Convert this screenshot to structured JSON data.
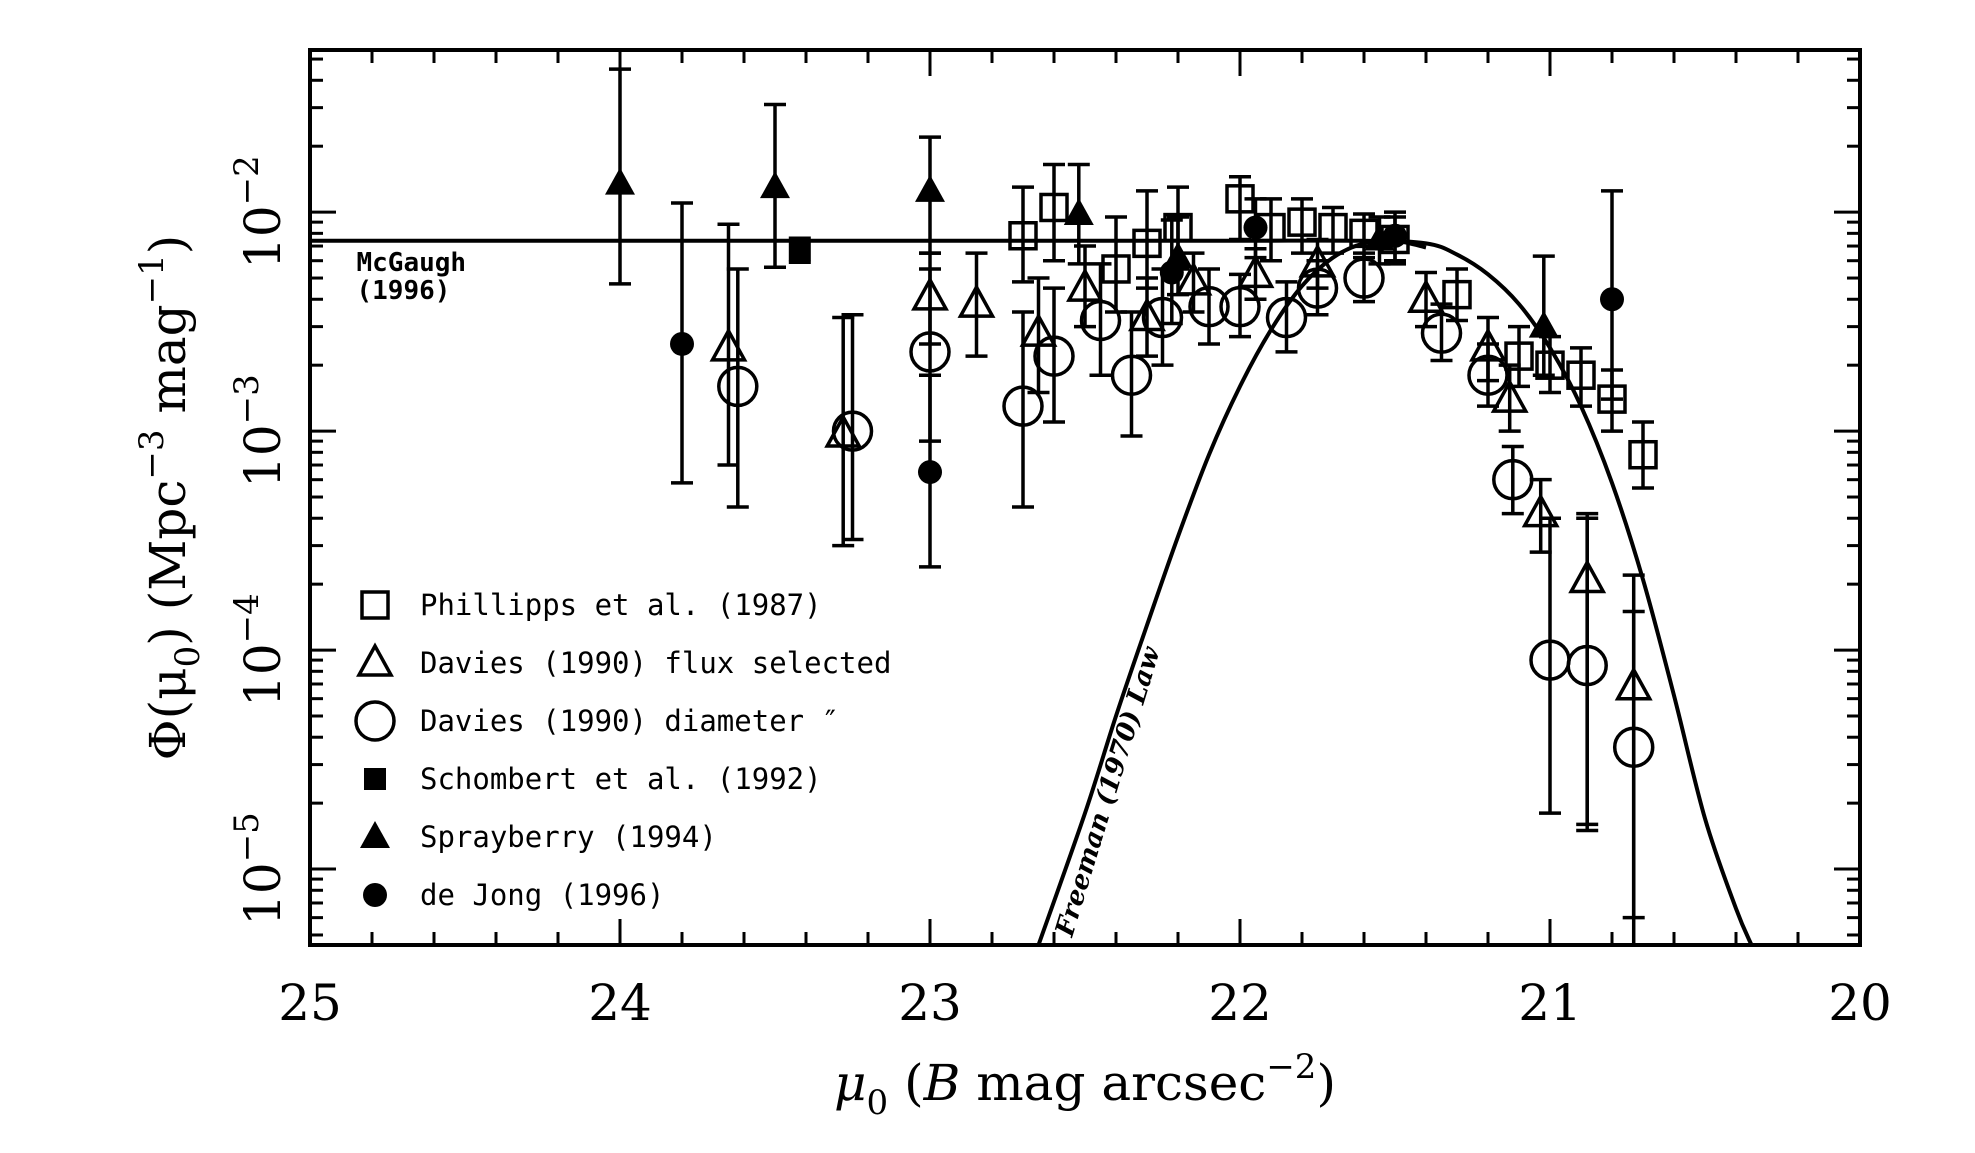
{
  "chart_data": {
    "type": "scatter",
    "title": "",
    "xlabel": "μ0 (B mag arcsec−2)",
    "xlabel_parts": {
      "main": "μ",
      "sub": "0",
      "mid": " (",
      "italic": "B",
      "rest": " mag arcsec",
      "sup": "−2",
      "end": ")"
    },
    "ylabel": "Φ(μ0) (Mpc−3 mag−1)",
    "ylabel_parts": {
      "a": "Φ(μ",
      "sub": "0",
      "b": ") (Mpc",
      "sup1": "−3",
      "c": " mag",
      "sup2": "−1",
      "d": ")"
    },
    "x_axis": {
      "min": 25,
      "max": 20,
      "reversed": true,
      "ticks": [
        25,
        24,
        23,
        22,
        21,
        20
      ],
      "tick_labels": [
        "25",
        "24",
        "23",
        "22",
        "21",
        "20"
      ]
    },
    "y_axis": {
      "scale": "log",
      "min": 4.5e-06,
      "max": 0.055,
      "ticks": [
        1e-05,
        0.0001,
        0.001,
        0.01
      ],
      "tick_labels": [
        {
          "base": "10",
          "exp": "−5"
        },
        {
          "base": "10",
          "exp": "−4"
        },
        {
          "base": "10",
          "exp": "−3"
        },
        {
          "base": "10",
          "exp": "−2"
        }
      ]
    },
    "legend_placement": "lower-left",
    "series": [
      {
        "name": "Phillipps et al. (1987)",
        "marker": "open-square",
        "points": [
          {
            "x": 22.7,
            "y": 0.0078,
            "lo": 0.0048,
            "hi": 0.013
          },
          {
            "x": 22.6,
            "y": 0.0105,
            "lo": 0.006,
            "hi": 0.0165
          },
          {
            "x": 22.4,
            "y": 0.0055,
            "lo": 0.0035,
            "hi": 0.0095
          },
          {
            "x": 22.3,
            "y": 0.0072,
            "lo": 0.0045,
            "hi": 0.0125
          },
          {
            "x": 22.2,
            "y": 0.0085,
            "lo": 0.0055,
            "hi": 0.013
          },
          {
            "x": 22.0,
            "y": 0.0115,
            "lo": 0.0075,
            "hi": 0.0145
          },
          {
            "x": 21.9,
            "y": 0.0085,
            "lo": 0.006,
            "hi": 0.0115
          },
          {
            "x": 21.8,
            "y": 0.009,
            "lo": 0.0065,
            "hi": 0.0115
          },
          {
            "x": 21.7,
            "y": 0.0085,
            "lo": 0.0065,
            "hi": 0.0105
          },
          {
            "x": 21.6,
            "y": 0.008,
            "lo": 0.0062,
            "hi": 0.0098
          },
          {
            "x": 21.5,
            "y": 0.0075,
            "lo": 0.0058,
            "hi": 0.0095
          },
          {
            "x": 21.3,
            "y": 0.0042,
            "lo": 0.0032,
            "hi": 0.0055
          },
          {
            "x": 21.1,
            "y": 0.0022,
            "lo": 0.0016,
            "hi": 0.003
          },
          {
            "x": 21.0,
            "y": 0.002,
            "lo": 0.0015,
            "hi": 0.0027
          },
          {
            "x": 20.9,
            "y": 0.0018,
            "lo": 0.0013,
            "hi": 0.0024
          },
          {
            "x": 20.8,
            "y": 0.0014,
            "lo": 0.001,
            "hi": 0.0019
          },
          {
            "x": 20.7,
            "y": 0.00078,
            "lo": 0.00055,
            "hi": 0.0011
          }
        ]
      },
      {
        "name": "Davies (1990) flux selected",
        "marker": "open-triangle",
        "points": [
          {
            "x": 23.65,
            "y": 0.0024,
            "lo": 0.0007,
            "hi": 0.0088
          },
          {
            "x": 23.28,
            "y": 0.00097,
            "lo": 0.0003,
            "hi": 0.0033
          },
          {
            "x": 23.0,
            "y": 0.0041,
            "lo": 0.0025,
            "hi": 0.0065
          },
          {
            "x": 22.85,
            "y": 0.0038,
            "lo": 0.0022,
            "hi": 0.0065
          },
          {
            "x": 22.65,
            "y": 0.0028,
            "lo": 0.0015,
            "hi": 0.005
          },
          {
            "x": 22.5,
            "y": 0.0045,
            "lo": 0.003,
            "hi": 0.007
          },
          {
            "x": 22.3,
            "y": 0.0033,
            "lo": 0.0022,
            "hi": 0.005
          },
          {
            "x": 22.15,
            "y": 0.0048,
            "lo": 0.0035,
            "hi": 0.0065
          },
          {
            "x": 21.95,
            "y": 0.0052,
            "lo": 0.004,
            "hi": 0.0068
          },
          {
            "x": 21.75,
            "y": 0.0058,
            "lo": 0.0045,
            "hi": 0.0075
          },
          {
            "x": 21.4,
            "y": 0.004,
            "lo": 0.003,
            "hi": 0.0053
          },
          {
            "x": 21.2,
            "y": 0.0024,
            "lo": 0.0017,
            "hi": 0.0033
          },
          {
            "x": 21.13,
            "y": 0.0014,
            "lo": 0.001,
            "hi": 0.002
          },
          {
            "x": 21.03,
            "y": 0.00042,
            "lo": 0.00028,
            "hi": 0.0006
          },
          {
            "x": 20.88,
            "y": 0.00021,
            "lo": 1.5e-05,
            "hi": 0.00042
          },
          {
            "x": 20.73,
            "y": 6.8e-05,
            "lo": 6e-06,
            "hi": 0.00015
          }
        ]
      },
      {
        "name": "Davies (1990) diameter ″",
        "marker": "open-circle",
        "points": [
          {
            "x": 23.62,
            "y": 0.0016,
            "lo": 0.00045,
            "hi": 0.0055
          },
          {
            "x": 23.25,
            "y": 0.001,
            "lo": 0.00032,
            "hi": 0.0034
          },
          {
            "x": 23.0,
            "y": 0.0023,
            "lo": 0.0009,
            "hi": 0.0055
          },
          {
            "x": 22.7,
            "y": 0.0013,
            "lo": 0.00045,
            "hi": 0.0035
          },
          {
            "x": 22.6,
            "y": 0.0022,
            "lo": 0.0011,
            "hi": 0.0045
          },
          {
            "x": 22.45,
            "y": 0.0032,
            "lo": 0.0018,
            "hi": 0.0058
          },
          {
            "x": 22.35,
            "y": 0.0018,
            "lo": 0.00095,
            "hi": 0.0035
          },
          {
            "x": 22.25,
            "y": 0.0033,
            "lo": 0.002,
            "hi": 0.0055
          },
          {
            "x": 22.1,
            "y": 0.0037,
            "lo": 0.0025,
            "hi": 0.0055
          },
          {
            "x": 22.0,
            "y": 0.0037,
            "lo": 0.0027,
            "hi": 0.0052
          },
          {
            "x": 21.85,
            "y": 0.0033,
            "lo": 0.0023,
            "hi": 0.0048
          },
          {
            "x": 21.75,
            "y": 0.0045,
            "lo": 0.0034,
            "hi": 0.006
          },
          {
            "x": 21.6,
            "y": 0.005,
            "lo": 0.0039,
            "hi": 0.0065
          },
          {
            "x": 21.35,
            "y": 0.0028,
            "lo": 0.0021,
            "hi": 0.0038
          },
          {
            "x": 21.2,
            "y": 0.0018,
            "lo": 0.0013,
            "hi": 0.0025
          },
          {
            "x": 21.12,
            "y": 0.0006,
            "lo": 0.00042,
            "hi": 0.00085
          },
          {
            "x": 21.0,
            "y": 9e-05,
            "lo": 1.8e-05,
            "hi": 0.0004
          },
          {
            "x": 20.88,
            "y": 8.5e-05,
            "lo": 1.6e-05,
            "hi": 0.0004
          },
          {
            "x": 20.73,
            "y": 3.6e-05,
            "lo": 4.5e-06,
            "hi": 0.00022
          }
        ]
      },
      {
        "name": "Schombert et al. (1992)",
        "marker": "filled-square",
        "points": [
          {
            "x": 23.42,
            "y": 0.0067,
            "lo": 0.0059,
            "hi": 0.0076
          }
        ]
      },
      {
        "name": "Sprayberry (1994)",
        "marker": "filled-triangle",
        "points": [
          {
            "x": 24.0,
            "y": 0.0135,
            "lo": 0.0047,
            "hi": 0.045
          },
          {
            "x": 23.5,
            "y": 0.013,
            "lo": 0.0056,
            "hi": 0.031
          },
          {
            "x": 23.0,
            "y": 0.0125,
            "lo": 0.0065,
            "hi": 0.022
          },
          {
            "x": 22.52,
            "y": 0.0098,
            "lo": 0.0058,
            "hi": 0.0165
          },
          {
            "x": 22.2,
            "y": 0.0062,
            "lo": 0.0042,
            "hi": 0.0095
          },
          {
            "x": 21.55,
            "y": 0.0075,
            "lo": 0.0058,
            "hi": 0.0095
          },
          {
            "x": 21.02,
            "y": 0.003,
            "lo": 0.0018,
            "hi": 0.0063
          }
        ]
      },
      {
        "name": "de Jong (1996)",
        "marker": "filled-circle",
        "points": [
          {
            "x": 23.8,
            "y": 0.0025,
            "lo": 0.00058,
            "hi": 0.011
          },
          {
            "x": 23.0,
            "y": 0.00065,
            "lo": 0.00024,
            "hi": 0.0018
          },
          {
            "x": 22.22,
            "y": 0.0053,
            "lo": 0.0031,
            "hi": 0.0092
          },
          {
            "x": 21.95,
            "y": 0.0085,
            "lo": 0.0062,
            "hi": 0.0115
          },
          {
            "x": 21.5,
            "y": 0.0078,
            "lo": 0.006,
            "hi": 0.01
          },
          {
            "x": 20.8,
            "y": 0.004,
            "lo": 0.0014,
            "hi": 0.0125
          }
        ]
      }
    ],
    "curves": [
      {
        "name": "McGaugh (1996)",
        "label_line1": "McGaugh",
        "label_line2": "(1996)",
        "points": [
          [
            25,
            0.0074
          ],
          [
            24.5,
            0.0074
          ],
          [
            24,
            0.0074
          ],
          [
            23.5,
            0.0074
          ],
          [
            23,
            0.0074
          ],
          [
            22.5,
            0.0074
          ],
          [
            22,
            0.0074
          ],
          [
            21.6,
            0.0074
          ],
          [
            21.4,
            0.0072
          ],
          [
            21.3,
            0.0064
          ],
          [
            21.2,
            0.0052
          ],
          [
            21.1,
            0.0038
          ],
          [
            21.0,
            0.0024
          ],
          [
            20.9,
            0.0013
          ],
          [
            20.8,
            0.00058
          ],
          [
            20.7,
            0.00021
          ],
          [
            20.6,
            6.2e-05
          ],
          [
            20.5,
            1.7e-05
          ],
          [
            20.4,
            6.6e-06
          ],
          [
            20.35,
            4.5e-06
          ]
        ]
      },
      {
        "name": "Freeman (1970) Law",
        "label": "Freeman (1970) Law",
        "points": [
          [
            22.65,
            4.5e-06
          ],
          [
            22.5,
            1.8e-05
          ],
          [
            22.4,
            5e-05
          ],
          [
            22.3,
            0.00013
          ],
          [
            22.2,
            0.00033
          ],
          [
            22.1,
            0.00078
          ],
          [
            22.0,
            0.0016
          ],
          [
            21.9,
            0.0029
          ],
          [
            21.8,
            0.0046
          ],
          [
            21.7,
            0.0062
          ],
          [
            21.6,
            0.0072
          ],
          [
            21.5,
            0.0074
          ],
          [
            21.4,
            0.0069
          ]
        ]
      }
    ]
  }
}
